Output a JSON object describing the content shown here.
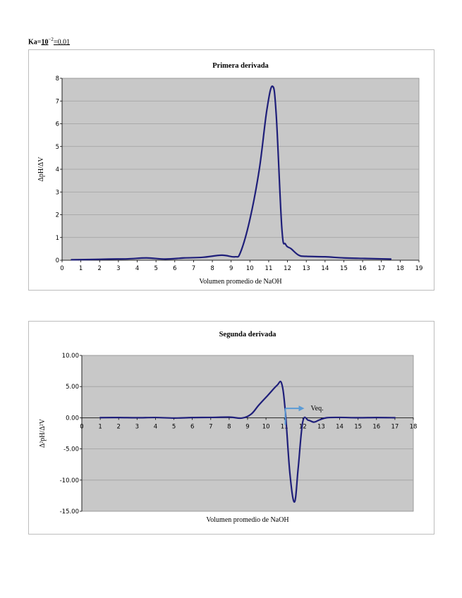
{
  "header": {
    "ka_label": "Ka=",
    "ka_base": "10",
    "ka_exp": "−2",
    "ka_value": "=0.01"
  },
  "colors": {
    "curve": "#1f1f7a",
    "plot_bg": "#c8c8c8",
    "gridline": "#a0a0a0",
    "arrow": "#5b9bd5"
  },
  "chart_data": [
    {
      "type": "line",
      "title": "Primera derivada",
      "xlabel": "Volumen promedio de NaOH",
      "ylabel": "ΔpH/ΔV",
      "xlim": [
        0,
        19
      ],
      "ylim": [
        0,
        8
      ],
      "x_ticks": [
        0,
        1,
        2,
        3,
        4,
        5,
        6,
        7,
        8,
        9,
        10,
        11,
        12,
        13,
        14,
        15,
        16,
        17,
        18,
        19
      ],
      "x_tick_labels": [
        "0",
        "1",
        "2",
        "3",
        "4",
        "5",
        "6",
        "7",
        "8",
        "9",
        "10",
        "11",
        "12",
        "13",
        "14",
        "15",
        "16",
        "17",
        "18",
        "19"
      ],
      "y_ticks": [
        0,
        1,
        2,
        3,
        4,
        5,
        6,
        7,
        8
      ],
      "y_tick_labels": [
        "0",
        "1",
        "2",
        "3",
        "4",
        "5",
        "6",
        "7",
        "8"
      ],
      "grid": true,
      "series": [
        {
          "x": [
            0.5,
            1.5,
            2.5,
            3.5,
            4.5,
            5.5,
            6.5,
            7.5,
            8.5,
            9.2,
            9.5,
            10.0,
            10.5,
            10.9,
            11.2,
            11.4,
            11.7,
            11.9,
            12.2,
            12.6,
            13.0,
            14.0,
            15.0,
            16.0,
            17.0,
            17.5
          ],
          "y": [
            0.02,
            0.03,
            0.05,
            0.06,
            0.1,
            0.05,
            0.1,
            0.13,
            0.22,
            0.15,
            0.35,
            1.8,
            4.0,
            6.6,
            7.65,
            6.4,
            1.4,
            0.7,
            0.5,
            0.22,
            0.17,
            0.15,
            0.1,
            0.08,
            0.06,
            0.05
          ]
        }
      ]
    },
    {
      "type": "line",
      "title": "Segunda derivada",
      "xlabel": "Volumen promedio de NaOH",
      "ylabel": "Δ²pH/Δ²V",
      "xlim": [
        0,
        18
      ],
      "ylim": [
        -15,
        10
      ],
      "x_ticks": [
        0,
        1,
        2,
        3,
        4,
        5,
        6,
        7,
        8,
        9,
        10,
        11,
        12,
        13,
        14,
        15,
        16,
        17,
        18
      ],
      "x_tick_labels": [
        "0",
        "1",
        "2",
        "3",
        "4",
        "5",
        "6",
        "7",
        "8",
        "9",
        "10",
        "11",
        "12",
        "13",
        "14",
        "15",
        "16",
        "17",
        "18"
      ],
      "y_ticks": [
        10,
        5,
        0,
        -5,
        -10,
        -15
      ],
      "y_tick_labels": [
        "10.00",
        "5.00",
        "0.00",
        "-5.00",
        "-10.00",
        "-15.00"
      ],
      "grid": true,
      "annotation": {
        "text": "Veq.",
        "x": 11.05,
        "y": 1.5
      },
      "series": [
        {
          "x": [
            1,
            2,
            3,
            4,
            5,
            6,
            7,
            8,
            8.7,
            9.2,
            9.6,
            10.1,
            10.6,
            10.85,
            11.05,
            11.3,
            11.55,
            11.75,
            12.0,
            12.3,
            12.6,
            12.9,
            13.3,
            14,
            15,
            16,
            17
          ],
          "y": [
            0.02,
            0.03,
            0.0,
            0.04,
            -0.05,
            0.03,
            0.05,
            0.1,
            -0.05,
            0.6,
            2.0,
            3.6,
            5.2,
            5.5,
            1.0,
            -9.0,
            -13.5,
            -8.0,
            -0.6,
            -0.4,
            -0.7,
            -0.35,
            0.0,
            0.05,
            0.0,
            0.03,
            0.0
          ]
        }
      ]
    }
  ]
}
